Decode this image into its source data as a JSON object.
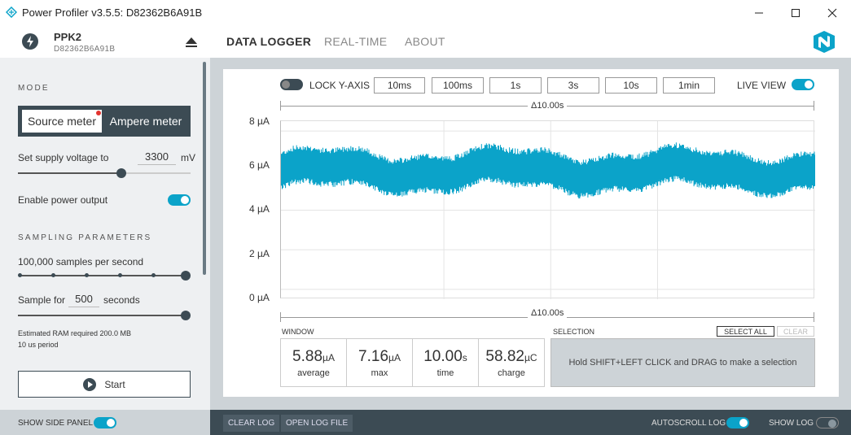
{
  "window": {
    "title": "Power Profiler v3.5.5: D82362B6A91B"
  },
  "device": {
    "name": "PPK2",
    "serial": "D82362B6A91B"
  },
  "nav": {
    "tabs": [
      "DATA LOGGER",
      "REAL-TIME",
      "ABOUT"
    ]
  },
  "sidebar": {
    "mode_label": "MODE",
    "mode_source": "Source meter",
    "mode_ampere": "Ampere meter",
    "supply_label": "Set supply voltage to",
    "supply_value": "3300",
    "supply_unit": "mV",
    "supply_slider_fraction": 0.6,
    "power_output_label": "Enable power output",
    "power_output_on": true,
    "sampling_label": "SAMPLING PARAMETERS",
    "samples_text": "100,000 samples per second",
    "sample_for_label": "Sample for",
    "sample_for_value": "500",
    "sample_for_unit": "seconds",
    "ram_text": "Estimated RAM required 200.0 MB",
    "period_text": "10 us period",
    "start_label": "Start"
  },
  "bottom": {
    "show_side_panel": "SHOW SIDE PANEL",
    "clear_log": "CLEAR LOG",
    "open_log_file": "OPEN LOG FILE",
    "autoscroll_log": "AUTOSCROLL LOG",
    "show_log": "SHOW LOG"
  },
  "chart_controls": {
    "lock_y_axis": "LOCK Y-AXIS",
    "windows": [
      "10ms",
      "100ms",
      "1s",
      "3s",
      "10s",
      "1min"
    ],
    "live_view": "LIVE VIEW",
    "delta_top": "Δ10.00s",
    "delta_bottom": "Δ10.00s"
  },
  "chart_data": {
    "type": "area",
    "ylabel": "",
    "ylim": [
      -0.5,
      8.5
    ],
    "yticks": [
      "8 µA",
      "6 µA",
      "4 µA",
      "2 µA",
      "0 µA"
    ],
    "x_window_seconds": 10.0,
    "series": [
      {
        "color": "#0ba3c9",
        "mean_uA": 5.88,
        "band_low_uA": 5.0,
        "band_high_uA": 7.0
      }
    ]
  },
  "stats": {
    "window_label": "WINDOW",
    "items": [
      {
        "value": "5.88",
        "unit": "µA",
        "label": "average"
      },
      {
        "value": "7.16",
        "unit": "µA",
        "label": "max"
      },
      {
        "value": "10.00",
        "unit": "s",
        "label": "time"
      },
      {
        "value": "58.82",
        "unit": "µC",
        "label": "charge"
      }
    ]
  },
  "selection": {
    "label": "SELECTION",
    "select_all": "SELECT ALL",
    "clear": "CLEAR",
    "hint": "Hold SHIFT+LEFT CLICK and DRAG to make a selection"
  }
}
